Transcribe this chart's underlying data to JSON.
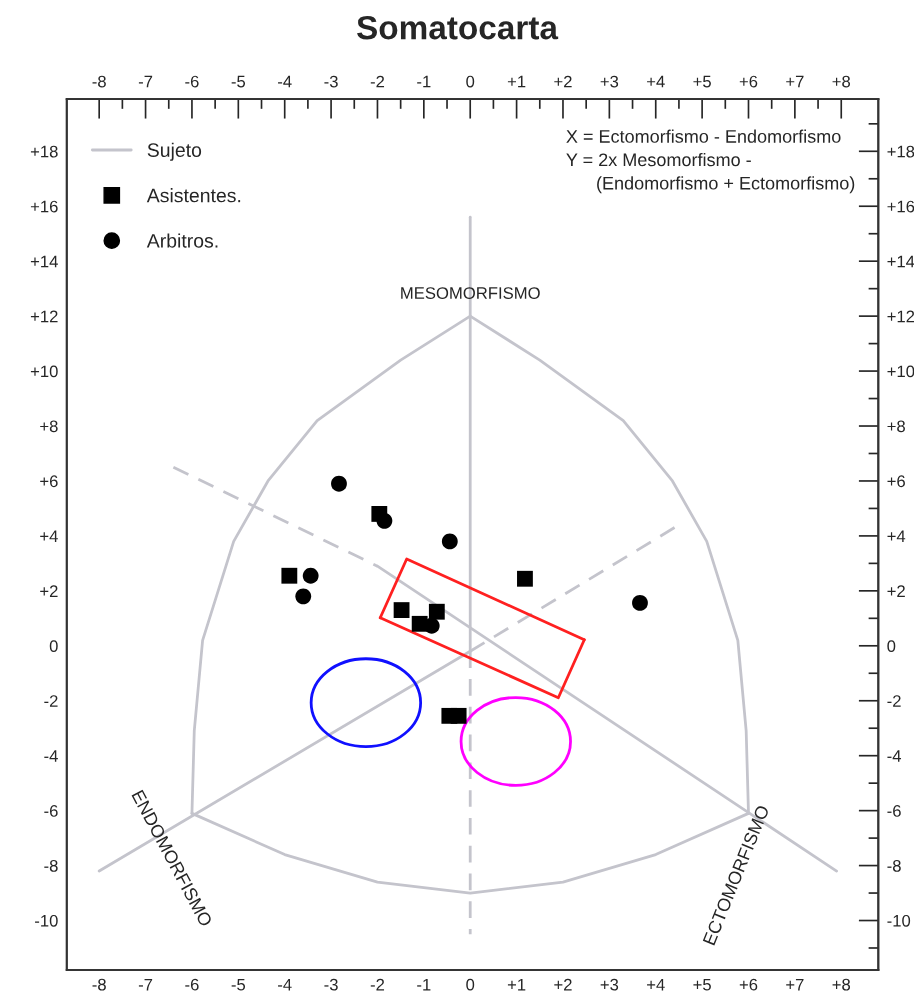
{
  "chart_data": {
    "type": "scatter",
    "title": "Somatocarta",
    "xlim": [
      -8.7,
      8.8
    ],
    "ylim": [
      -11.8,
      19.9
    ],
    "x2lim": [
      -8.7,
      8.8
    ],
    "y2lim": [
      -11.8,
      19.9
    ],
    "xticks": [
      {
        "value": -8,
        "label": "-8"
      },
      {
        "value": -7.5,
        "label": null
      },
      {
        "value": -7,
        "label": "-7"
      },
      {
        "value": -6.5,
        "label": null
      },
      {
        "value": -6,
        "label": "-6"
      },
      {
        "value": -5.5,
        "label": null
      },
      {
        "value": -5,
        "label": "-5"
      },
      {
        "value": -4.5,
        "label": null
      },
      {
        "value": -4,
        "label": "-4"
      },
      {
        "value": -3.5,
        "label": null
      },
      {
        "value": -3,
        "label": "-3"
      },
      {
        "value": -2.5,
        "label": null
      },
      {
        "value": -2,
        "label": "-2"
      },
      {
        "value": -1.5,
        "label": null
      },
      {
        "value": -1,
        "label": "-1"
      },
      {
        "value": -0.5,
        "label": null
      },
      0,
      {
        "value": 0.5,
        "label": null
      },
      {
        "value": 1,
        "label": "+1"
      },
      {
        "value": 1.5,
        "label": null
      },
      {
        "value": 2,
        "label": "+2"
      },
      {
        "value": 2.5,
        "label": null
      },
      {
        "value": 3,
        "label": "+3"
      },
      {
        "value": 3.5,
        "label": null
      },
      {
        "value": 4,
        "label": "+4"
      },
      {
        "value": 4.5,
        "label": null
      },
      {
        "value": 5,
        "label": "+5"
      },
      {
        "value": 5.5,
        "label": null
      },
      {
        "value": 6,
        "label": "+6"
      },
      {
        "value": 6.5,
        "label": null
      },
      {
        "value": 7,
        "label": "+7"
      },
      {
        "value": 7.5,
        "label": null
      },
      {
        "value": 8,
        "label": "+8"
      }
    ],
    "x2ticks": [
      {
        "value": -8,
        "label": "-8"
      },
      {
        "value": -7.5,
        "label": null
      },
      {
        "value": -7,
        "label": "-7"
      },
      {
        "value": -6.5,
        "label": null
      },
      {
        "value": -6,
        "label": "-6"
      },
      {
        "value": -5.5,
        "label": null
      },
      {
        "value": -5,
        "label": "-5"
      },
      {
        "value": -4.5,
        "label": null
      },
      {
        "value": -4,
        "label": "-4"
      },
      {
        "value": -3.5,
        "label": null
      },
      {
        "value": -3,
        "label": "-3"
      },
      {
        "value": -2.5,
        "label": null
      },
      {
        "value": -2,
        "label": "-2"
      },
      {
        "value": -1.5,
        "label": null
      },
      {
        "value": -1,
        "label": "-1"
      },
      {
        "value": -0.5,
        "label": null
      },
      0,
      {
        "value": 0.5,
        "label": null
      },
      {
        "value": 1,
        "label": "+1"
      },
      {
        "value": 1.5,
        "label": null
      },
      {
        "value": 2,
        "label": "+2"
      },
      {
        "value": 2.5,
        "label": null
      },
      {
        "value": 3,
        "label": "+3"
      },
      {
        "value": 3.5,
        "label": null
      },
      {
        "value": 4,
        "label": "+4"
      },
      {
        "value": 4.5,
        "label": null
      },
      {
        "value": 5,
        "label": "+5"
      },
      {
        "value": 5.5,
        "label": null
      },
      {
        "value": 6,
        "label": "+6"
      },
      {
        "value": 6.5,
        "label": null
      },
      {
        "value": 7,
        "label": "+7"
      },
      {
        "value": 7.5,
        "label": null
      },
      {
        "value": 8,
        "label": "+8"
      }
    ],
    "yticks": [
      {
        "value": -11,
        "label": null
      },
      {
        "value": -10,
        "label": "-10"
      },
      {
        "value": -9,
        "label": null
      },
      {
        "value": -8,
        "label": "-8"
      },
      {
        "value": -7,
        "label": null
      },
      {
        "value": -6,
        "label": "-6"
      },
      {
        "value": -5,
        "label": null
      },
      {
        "value": -4,
        "label": "-4"
      },
      {
        "value": -3,
        "label": null
      },
      {
        "value": -2,
        "label": "-2"
      },
      {
        "value": -1,
        "label": null
      },
      0,
      {
        "value": 1,
        "label": null
      },
      {
        "value": 2,
        "label": "+2"
      },
      {
        "value": 3,
        "label": null
      },
      {
        "value": 4,
        "label": "+4"
      },
      {
        "value": 5,
        "label": null
      },
      {
        "value": 6,
        "label": "+6"
      },
      {
        "value": 7,
        "label": null
      },
      {
        "value": 8,
        "label": "+8"
      },
      {
        "value": 9,
        "label": null
      },
      {
        "value": 10,
        "label": "+10"
      },
      {
        "value": 11,
        "label": null
      },
      {
        "value": 12,
        "label": "+12"
      },
      {
        "value": 13,
        "label": null
      },
      {
        "value": 14,
        "label": "+14"
      },
      {
        "value": 15,
        "label": null
      },
      {
        "value": 16,
        "label": "+16"
      },
      {
        "value": 17,
        "label": null
      },
      {
        "value": 18,
        "label": "+18"
      },
      {
        "value": 19,
        "label": null
      }
    ],
    "y2ticks": [
      {
        "value": -11,
        "label": null
      },
      {
        "value": -10,
        "label": "-10"
      },
      {
        "value": -9,
        "label": null
      },
      {
        "value": -8,
        "label": "-8"
      },
      {
        "value": -7,
        "label": null
      },
      {
        "value": -6,
        "label": "-6"
      },
      {
        "value": -5,
        "label": null
      },
      {
        "value": -4,
        "label": "-4"
      },
      {
        "value": -3,
        "label": null
      },
      {
        "value": -2,
        "label": "-2"
      },
      {
        "value": -1,
        "label": null
      },
      0,
      {
        "value": 1,
        "label": null
      },
      {
        "value": 2,
        "label": "+2"
      },
      {
        "value": 3,
        "label": null
      },
      {
        "value": 4,
        "label": "+4"
      },
      {
        "value": 5,
        "label": null
      },
      {
        "value": 6,
        "label": "+6"
      },
      {
        "value": 7,
        "label": null
      },
      {
        "value": 8,
        "label": "+8"
      },
      {
        "value": 9,
        "label": null
      },
      {
        "value": 10,
        "label": "+10"
      },
      {
        "value": 11,
        "label": null
      },
      {
        "value": 12,
        "label": "+12"
      },
      {
        "value": 13,
        "label": null
      },
      {
        "value": 14,
        "label": "+14"
      },
      {
        "value": 15,
        "label": null
      },
      {
        "value": 16,
        "label": "+16"
      },
      {
        "value": 17,
        "label": null
      },
      {
        "value": 18,
        "label": "+18"
      },
      {
        "value": 19,
        "label": null
      }
    ],
    "grid": false,
    "legend": "top left",
    "series": [
      {
        "name": "Sujeto",
        "type": "line",
        "color": "#c4c4cc",
        "line_style": "solid",
        "marker": "none",
        "x": [
          -6.0,
          -5.95,
          -5.77,
          -5.1,
          -4.36,
          -3.3,
          -1.5,
          0
        ],
        "values": [
          -6.1,
          -3.1,
          0.2,
          3.8,
          6.0,
          8.2,
          10.4,
          12.0
        ]
      },
      {
        "type": "line",
        "color": "#c4c4cc",
        "line_style": "solid",
        "marker": "none",
        "x": [
          0,
          1.5,
          3.3,
          4.36,
          5.1,
          5.77,
          5.95,
          6.0
        ],
        "values": [
          12.0,
          10.4,
          8.2,
          6.0,
          3.8,
          0.2,
          -3.1,
          -6.1
        ]
      },
      {
        "type": "line",
        "color": "#c4c4cc",
        "line_style": "solid",
        "marker": "none",
        "x": [
          -6.0,
          -4,
          -2,
          0,
          2,
          4,
          6.0
        ],
        "values": [
          -6.1,
          -7.6,
          -8.6,
          -9.0,
          -8.6,
          -7.6,
          -6.1
        ]
      },
      {
        "type": "line",
        "color": "#c4c4cc",
        "line_style": "solid",
        "marker": "none",
        "x": [
          0,
          0
        ],
        "values": [
          15.6,
          -0.2
        ]
      },
      {
        "type": "line",
        "color": "#c4c4cc",
        "line_style": "dashed",
        "marker": "none",
        "x": [
          0,
          0
        ],
        "values": [
          -0.2,
          -10.5
        ]
      },
      {
        "type": "line",
        "color": "#c4c4cc",
        "line_style": "solid",
        "marker": "none",
        "x": [
          -8.0,
          0
        ],
        "values": [
          -8.2,
          -0.2
        ]
      },
      {
        "type": "line",
        "color": "#c4c4cc",
        "line_style": "dashed",
        "marker": "none",
        "x": [
          0,
          4.5
        ],
        "values": [
          -0.2,
          4.4
        ]
      },
      {
        "type": "line",
        "color": "#c4c4cc",
        "line_style": "dashed",
        "marker": "none",
        "x": [
          -6.4,
          -2.0
        ],
        "values": [
          6.5,
          2.9
        ]
      },
      {
        "type": "line",
        "color": "#c4c4cc",
        "line_style": "solid",
        "marker": "none",
        "x": [
          -2.0,
          7.9
        ],
        "values": [
          2.9,
          -8.2
        ]
      },
      {
        "type": "line",
        "color": "#ff2020",
        "line_style": "solid",
        "marker": "none",
        "x": [
          -1.94,
          -1.37,
          2.46
        ],
        "values": [
          1.02,
          3.16,
          0.22
        ]
      },
      {
        "type": "line",
        "color": "#ff2020",
        "line_style": "solid",
        "marker": "none",
        "x": [
          -1.94,
          1.9,
          2.46
        ],
        "values": [
          1.02,
          -1.89,
          0.22
        ]
      },
      {
        "name": "Asistentes.",
        "type": "scatter",
        "color": "#000000",
        "marker": "square",
        "x": [
          -3.9,
          -1.96,
          -1.48,
          -0.72,
          -1.09,
          1.18,
          -0.45,
          -0.25
        ],
        "values": [
          2.55,
          4.8,
          1.3,
          1.24,
          0.8,
          2.44,
          -2.55,
          -2.55
        ]
      },
      {
        "name": "Arbitros.",
        "type": "scatter",
        "color": "#000000",
        "marker": "circle",
        "x": [
          -2.83,
          -1.85,
          -0.44,
          -3.44,
          -3.6,
          -0.83,
          3.66
        ],
        "values": [
          5.9,
          4.55,
          3.8,
          2.55,
          1.8,
          0.73,
          1.56
        ]
      }
    ],
    "annotations": [
      "X = Ectomorfismo - Endomorfismo\nY = 2x Mesomorfismo -\n      (Endomorfismo + Ectomorfismo)",
      {
        "text": "MESOMORFISMO",
        "x": 0,
        "y": 12.0
      },
      {
        "text": "ENDOMORFISMO",
        "x": -7.0,
        "y": -7.15
      },
      {
        "text": "ECTOMORFISMO",
        "x": 6.0,
        "y": -6.1
      }
    ]
  }
}
